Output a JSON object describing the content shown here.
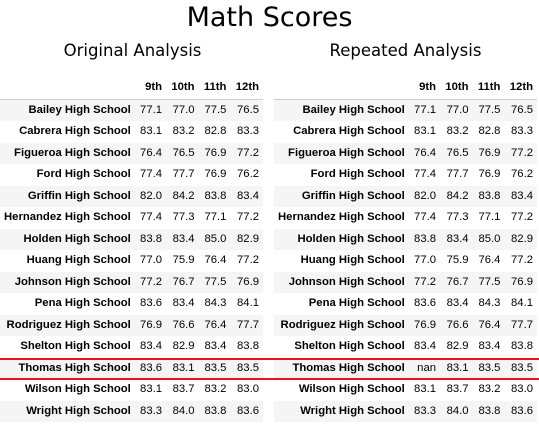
{
  "title": "Math Scores",
  "columns": [
    "9th",
    "10th",
    "11th",
    "12th"
  ],
  "original": {
    "heading": "Original Analysis",
    "rows": [
      {
        "school": "Bailey High School",
        "values": [
          "77.1",
          "77.0",
          "77.5",
          "76.5"
        ]
      },
      {
        "school": "Cabrera High School",
        "values": [
          "83.1",
          "83.2",
          "82.8",
          "83.3"
        ]
      },
      {
        "school": "Figueroa High School",
        "values": [
          "76.4",
          "76.5",
          "76.9",
          "77.2"
        ]
      },
      {
        "school": "Ford High School",
        "values": [
          "77.4",
          "77.7",
          "76.9",
          "76.2"
        ]
      },
      {
        "school": "Griffin High School",
        "values": [
          "82.0",
          "84.2",
          "83.8",
          "83.4"
        ]
      },
      {
        "school": "Hernandez High School",
        "values": [
          "77.4",
          "77.3",
          "77.1",
          "77.2"
        ]
      },
      {
        "school": "Holden High School",
        "values": [
          "83.8",
          "83.4",
          "85.0",
          "82.9"
        ]
      },
      {
        "school": "Huang High School",
        "values": [
          "77.0",
          "75.9",
          "76.4",
          "77.2"
        ]
      },
      {
        "school": "Johnson High School",
        "values": [
          "77.2",
          "76.7",
          "77.5",
          "76.9"
        ]
      },
      {
        "school": "Pena High School",
        "values": [
          "83.6",
          "83.4",
          "84.3",
          "84.1"
        ]
      },
      {
        "school": "Rodriguez High School",
        "values": [
          "76.9",
          "76.6",
          "76.4",
          "77.7"
        ]
      },
      {
        "school": "Shelton High School",
        "values": [
          "83.4",
          "82.9",
          "83.4",
          "83.8"
        ]
      },
      {
        "school": "Thomas High School",
        "values": [
          "83.6",
          "83.1",
          "83.5",
          "83.5"
        ]
      },
      {
        "school": "Wilson High School",
        "values": [
          "83.1",
          "83.7",
          "83.2",
          "83.0"
        ]
      },
      {
        "school": "Wright High School",
        "values": [
          "83.3",
          "84.0",
          "83.8",
          "83.6"
        ]
      }
    ]
  },
  "repeated": {
    "heading": "Repeated Analysis",
    "rows": [
      {
        "school": "Bailey High School",
        "values": [
          "77.1",
          "77.0",
          "77.5",
          "76.5"
        ]
      },
      {
        "school": "Cabrera High School",
        "values": [
          "83.1",
          "83.2",
          "82.8",
          "83.3"
        ]
      },
      {
        "school": "Figueroa High School",
        "values": [
          "76.4",
          "76.5",
          "76.9",
          "77.2"
        ]
      },
      {
        "school": "Ford High School",
        "values": [
          "77.4",
          "77.7",
          "76.9",
          "76.2"
        ]
      },
      {
        "school": "Griffin High School",
        "values": [
          "82.0",
          "84.2",
          "83.8",
          "83.4"
        ]
      },
      {
        "school": "Hernandez High School",
        "values": [
          "77.4",
          "77.3",
          "77.1",
          "77.2"
        ]
      },
      {
        "school": "Holden High School",
        "values": [
          "83.8",
          "83.4",
          "85.0",
          "82.9"
        ]
      },
      {
        "school": "Huang High School",
        "values": [
          "77.0",
          "75.9",
          "76.4",
          "77.2"
        ]
      },
      {
        "school": "Johnson High School",
        "values": [
          "77.2",
          "76.7",
          "77.5",
          "76.9"
        ]
      },
      {
        "school": "Pena High School",
        "values": [
          "83.6",
          "83.4",
          "84.3",
          "84.1"
        ]
      },
      {
        "school": "Rodriguez High School",
        "values": [
          "76.9",
          "76.6",
          "76.4",
          "77.7"
        ]
      },
      {
        "school": "Shelton High School",
        "values": [
          "83.4",
          "82.9",
          "83.4",
          "83.8"
        ]
      },
      {
        "school": "Thomas High School",
        "values": [
          "nan",
          "83.1",
          "83.5",
          "83.5"
        ]
      },
      {
        "school": "Wilson High School",
        "values": [
          "83.1",
          "83.7",
          "83.2",
          "83.0"
        ]
      },
      {
        "school": "Wright High School",
        "values": [
          "83.3",
          "84.0",
          "83.8",
          "83.6"
        ]
      }
    ]
  },
  "highlight_color": "#e8141e",
  "highlighted_school": "Thomas High School"
}
